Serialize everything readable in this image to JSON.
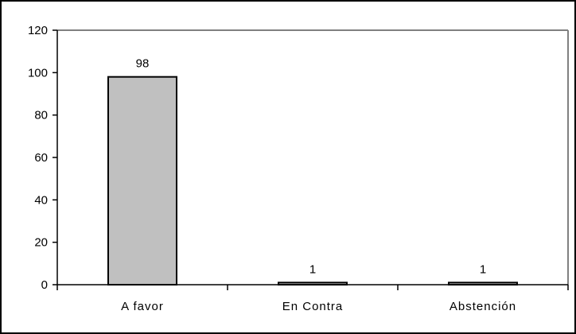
{
  "chart_data": {
    "type": "bar",
    "categories": [
      "A favor",
      "En Contra",
      "Abstención"
    ],
    "values": [
      98,
      1,
      1
    ],
    "data_labels": [
      "98",
      "1",
      "1"
    ],
    "title": "",
    "xlabel": "",
    "ylabel": "",
    "ylim": [
      0,
      120
    ],
    "yticks": [
      "0",
      "20",
      "40",
      "60",
      "80",
      "100",
      "120"
    ],
    "grid": false,
    "legend": "none",
    "bar_color": "#c0c0c0",
    "bar_edge_color": "#000000",
    "plot_border_color": "#808080"
  }
}
